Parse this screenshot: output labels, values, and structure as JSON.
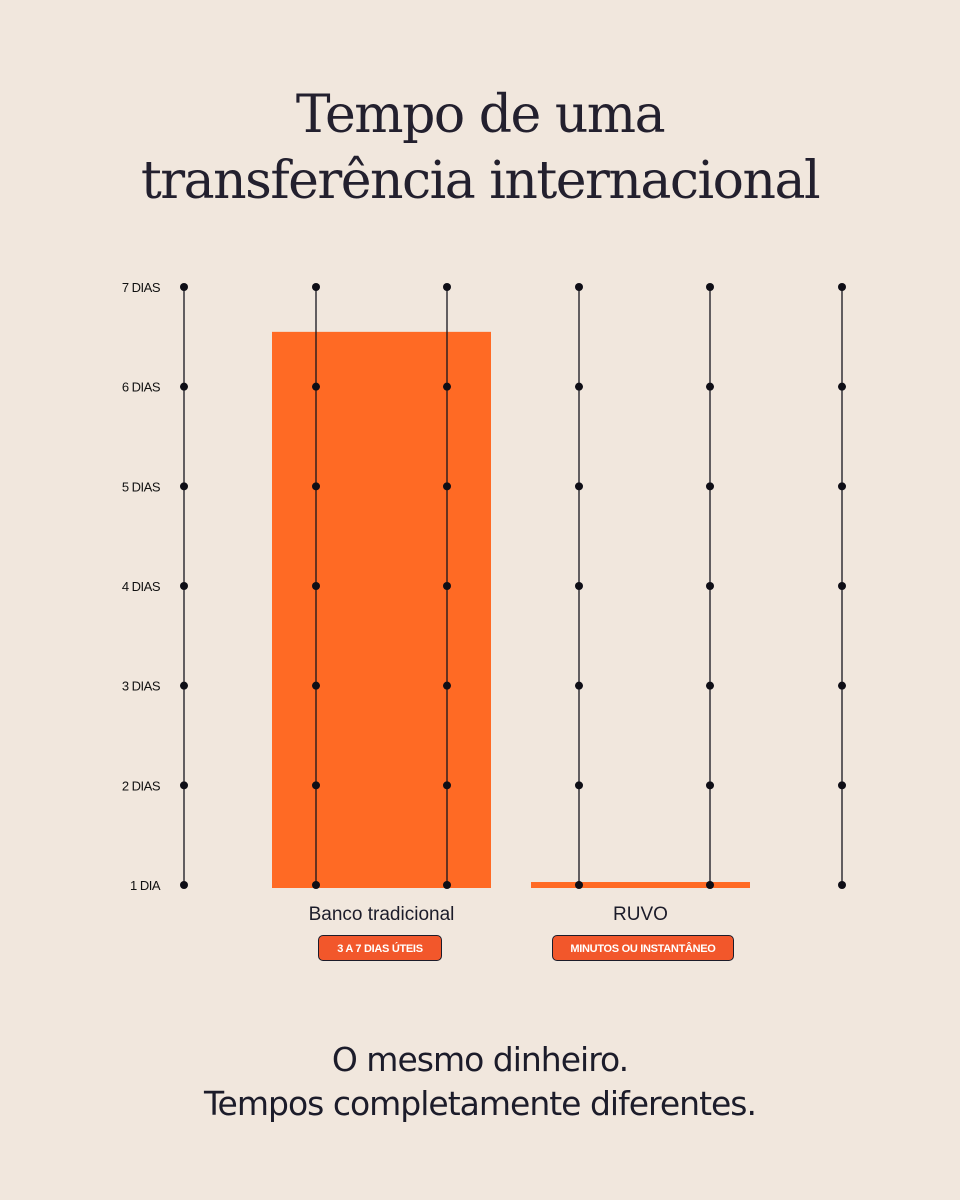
{
  "title": {
    "line1": "Tempo de uma",
    "line2": "transferência internacional"
  },
  "chart_data": {
    "type": "bar",
    "title": "Tempo de uma transferência internacional",
    "y_ticks": [
      "1 DIA",
      "2 DIAS",
      "3 DIAS",
      "4 DIAS",
      "5 DIAS",
      "6 DIAS",
      "7 DIAS"
    ],
    "ylim": [
      1,
      7
    ],
    "categories": [
      "Banco tradicional",
      "RUVO"
    ],
    "values": [
      6.55,
      1.03
    ],
    "badges": [
      "3 A 7 DIAS ÚTEIS",
      "MINUTOS OU INSTANTÂNEO"
    ],
    "bar_color": "#ff6a24",
    "grid": true
  },
  "tagline": {
    "line1": "O mesmo dinheiro.",
    "line2": "Tempos completamente diferentes."
  },
  "colors": {
    "background": "#f1e7dd",
    "accent": "#ff6a24",
    "badge": "#f2572b",
    "text": "#1c1c2a"
  }
}
